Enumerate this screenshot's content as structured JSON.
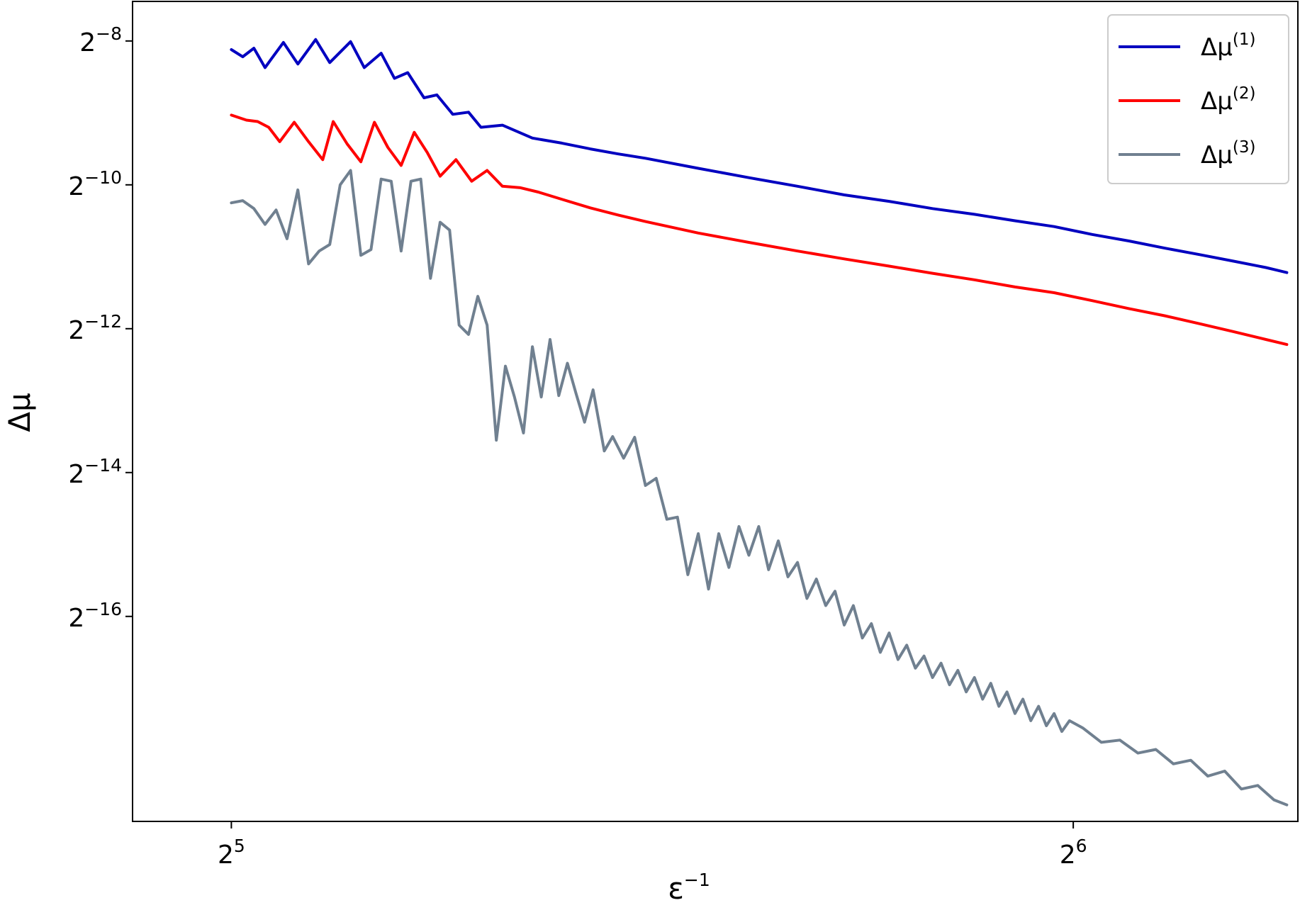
{
  "chart_data": {
    "type": "line",
    "xscale": "log2",
    "yscale": "log2",
    "xlabel": "ε",
    "xlabel_sup": "−1",
    "ylabel": "Δμ",
    "xlim": [
      29.5,
      77
    ],
    "ylim_log2": [
      -18.85,
      -7.45
    ],
    "grid": false,
    "legend_position": "top-right",
    "x_ticks": [
      {
        "value": 32,
        "base": "2",
        "exp": "5"
      },
      {
        "value": 64,
        "base": "2",
        "exp": "6"
      }
    ],
    "y_ticks": [
      {
        "log2": -8,
        "base": "2",
        "exp": "−8"
      },
      {
        "log2": -10,
        "base": "2",
        "exp": "−10"
      },
      {
        "log2": -12,
        "base": "2",
        "exp": "−12"
      },
      {
        "log2": -14,
        "base": "2",
        "exp": "−14"
      },
      {
        "log2": -16,
        "base": "2",
        "exp": "−16"
      }
    ],
    "series": [
      {
        "name": "Δμ",
        "sup": "(1)",
        "color": "#0000c0",
        "y_log2_points": [
          [
            32.0,
            -8.12
          ],
          [
            32.3,
            -8.22
          ],
          [
            32.6,
            -8.1
          ],
          [
            32.9,
            -8.37
          ],
          [
            33.4,
            -8.02
          ],
          [
            33.8,
            -8.32
          ],
          [
            34.3,
            -7.98
          ],
          [
            34.7,
            -8.3
          ],
          [
            35.3,
            -8.01
          ],
          [
            35.7,
            -8.37
          ],
          [
            36.2,
            -8.17
          ],
          [
            36.6,
            -8.52
          ],
          [
            37.0,
            -8.44
          ],
          [
            37.5,
            -8.79
          ],
          [
            37.9,
            -8.75
          ],
          [
            38.4,
            -9.02
          ],
          [
            38.9,
            -8.99
          ],
          [
            39.3,
            -9.2
          ],
          [
            40.0,
            -9.17
          ],
          [
            41.0,
            -9.35
          ],
          [
            42.0,
            -9.42
          ],
          [
            43.0,
            -9.5
          ],
          [
            44.0,
            -9.57
          ],
          [
            45.0,
            -9.63
          ],
          [
            47.0,
            -9.77
          ],
          [
            49.0,
            -9.9
          ],
          [
            51.0,
            -10.02
          ],
          [
            53.0,
            -10.14
          ],
          [
            55.0,
            -10.23
          ],
          [
            57.0,
            -10.33
          ],
          [
            59.0,
            -10.41
          ],
          [
            61.0,
            -10.5
          ],
          [
            63.0,
            -10.58
          ],
          [
            65.0,
            -10.69
          ],
          [
            67.0,
            -10.78
          ],
          [
            69.0,
            -10.88
          ],
          [
            71.0,
            -10.97
          ],
          [
            73.0,
            -11.06
          ],
          [
            75.0,
            -11.15
          ],
          [
            76.3,
            -11.22
          ]
        ]
      },
      {
        "name": "Δμ",
        "sup": "(2)",
        "color": "#ff0000",
        "y_log2_points": [
          [
            32.0,
            -9.03
          ],
          [
            32.4,
            -9.1
          ],
          [
            32.7,
            -9.12
          ],
          [
            33.0,
            -9.2
          ],
          [
            33.3,
            -9.4
          ],
          [
            33.7,
            -9.13
          ],
          [
            34.1,
            -9.4
          ],
          [
            34.5,
            -9.65
          ],
          [
            34.8,
            -9.12
          ],
          [
            35.2,
            -9.43
          ],
          [
            35.6,
            -9.68
          ],
          [
            36.0,
            -9.13
          ],
          [
            36.4,
            -9.48
          ],
          [
            36.8,
            -9.73
          ],
          [
            37.2,
            -9.27
          ],
          [
            37.6,
            -9.55
          ],
          [
            38.0,
            -9.88
          ],
          [
            38.5,
            -9.65
          ],
          [
            39.0,
            -9.95
          ],
          [
            39.5,
            -9.8
          ],
          [
            40.0,
            -10.02
          ],
          [
            40.6,
            -10.04
          ],
          [
            41.2,
            -10.1
          ],
          [
            42.0,
            -10.2
          ],
          [
            43.0,
            -10.32
          ],
          [
            44.0,
            -10.42
          ],
          [
            45.0,
            -10.51
          ],
          [
            47.0,
            -10.67
          ],
          [
            49.0,
            -10.8
          ],
          [
            51.0,
            -10.92
          ],
          [
            53.0,
            -11.03
          ],
          [
            55.0,
            -11.13
          ],
          [
            57.0,
            -11.23
          ],
          [
            59.0,
            -11.32
          ],
          [
            61.0,
            -11.42
          ],
          [
            63.0,
            -11.5
          ],
          [
            65.0,
            -11.61
          ],
          [
            67.0,
            -11.72
          ],
          [
            69.0,
            -11.82
          ],
          [
            71.0,
            -11.93
          ],
          [
            73.0,
            -12.04
          ],
          [
            75.0,
            -12.15
          ],
          [
            76.3,
            -12.22
          ]
        ]
      },
      {
        "name": "Δμ",
        "sup": "(3)",
        "color": "#708090",
        "y_log2_points": [
          [
            32.0,
            -10.25
          ],
          [
            32.3,
            -10.22
          ],
          [
            32.6,
            -10.33
          ],
          [
            32.9,
            -10.55
          ],
          [
            33.2,
            -10.35
          ],
          [
            33.5,
            -10.75
          ],
          [
            33.8,
            -10.07
          ],
          [
            34.1,
            -11.1
          ],
          [
            34.4,
            -10.92
          ],
          [
            34.7,
            -10.83
          ],
          [
            35.0,
            -10.0
          ],
          [
            35.3,
            -9.8
          ],
          [
            35.6,
            -10.98
          ],
          [
            35.9,
            -10.9
          ],
          [
            36.2,
            -9.92
          ],
          [
            36.5,
            -9.95
          ],
          [
            36.8,
            -10.92
          ],
          [
            37.1,
            -9.95
          ],
          [
            37.4,
            -9.92
          ],
          [
            37.7,
            -11.3
          ],
          [
            38.0,
            -10.52
          ],
          [
            38.3,
            -10.63
          ],
          [
            38.6,
            -11.95
          ],
          [
            38.9,
            -12.08
          ],
          [
            39.2,
            -11.55
          ],
          [
            39.5,
            -11.95
          ],
          [
            39.8,
            -13.55
          ],
          [
            40.1,
            -12.52
          ],
          [
            40.4,
            -12.95
          ],
          [
            40.7,
            -13.45
          ],
          [
            41.0,
            -12.25
          ],
          [
            41.3,
            -12.95
          ],
          [
            41.6,
            -12.15
          ],
          [
            41.9,
            -12.93
          ],
          [
            42.2,
            -12.48
          ],
          [
            42.5,
            -12.9
          ],
          [
            42.8,
            -13.3
          ],
          [
            43.1,
            -12.85
          ],
          [
            43.5,
            -13.7
          ],
          [
            43.8,
            -13.5
          ],
          [
            44.2,
            -13.8
          ],
          [
            44.6,
            -13.51
          ],
          [
            45.0,
            -14.18
          ],
          [
            45.4,
            -14.08
          ],
          [
            45.8,
            -14.65
          ],
          [
            46.2,
            -14.62
          ],
          [
            46.6,
            -15.42
          ],
          [
            47.0,
            -14.85
          ],
          [
            47.4,
            -15.62
          ],
          [
            47.8,
            -14.85
          ],
          [
            48.2,
            -15.32
          ],
          [
            48.6,
            -14.75
          ],
          [
            49.0,
            -15.15
          ],
          [
            49.4,
            -14.75
          ],
          [
            49.8,
            -15.35
          ],
          [
            50.2,
            -14.95
          ],
          [
            50.6,
            -15.45
          ],
          [
            51.0,
            -15.25
          ],
          [
            51.4,
            -15.75
          ],
          [
            51.8,
            -15.48
          ],
          [
            52.2,
            -15.85
          ],
          [
            52.6,
            -15.65
          ],
          [
            53.0,
            -16.12
          ],
          [
            53.4,
            -15.85
          ],
          [
            53.8,
            -16.3
          ],
          [
            54.2,
            -16.1
          ],
          [
            54.6,
            -16.5
          ],
          [
            55.0,
            -16.23
          ],
          [
            55.4,
            -16.6
          ],
          [
            55.8,
            -16.4
          ],
          [
            56.2,
            -16.72
          ],
          [
            56.6,
            -16.55
          ],
          [
            57.0,
            -16.85
          ],
          [
            57.4,
            -16.65
          ],
          [
            57.8,
            -16.95
          ],
          [
            58.2,
            -16.75
          ],
          [
            58.6,
            -17.05
          ],
          [
            59.0,
            -16.85
          ],
          [
            59.4,
            -17.15
          ],
          [
            59.8,
            -16.93
          ],
          [
            60.2,
            -17.25
          ],
          [
            60.6,
            -17.05
          ],
          [
            61.0,
            -17.35
          ],
          [
            61.4,
            -17.15
          ],
          [
            61.8,
            -17.45
          ],
          [
            62.2,
            -17.25
          ],
          [
            62.6,
            -17.52
          ],
          [
            63.0,
            -17.35
          ],
          [
            63.4,
            -17.6
          ],
          [
            63.8,
            -17.45
          ],
          [
            64.5,
            -17.55
          ],
          [
            65.5,
            -17.75
          ],
          [
            66.5,
            -17.72
          ],
          [
            67.5,
            -17.9
          ],
          [
            68.5,
            -17.85
          ],
          [
            69.5,
            -18.05
          ],
          [
            70.5,
            -18.0
          ],
          [
            71.5,
            -18.22
          ],
          [
            72.5,
            -18.15
          ],
          [
            73.5,
            -18.4
          ],
          [
            74.5,
            -18.35
          ],
          [
            75.5,
            -18.55
          ],
          [
            76.3,
            -18.62
          ]
        ]
      }
    ]
  }
}
